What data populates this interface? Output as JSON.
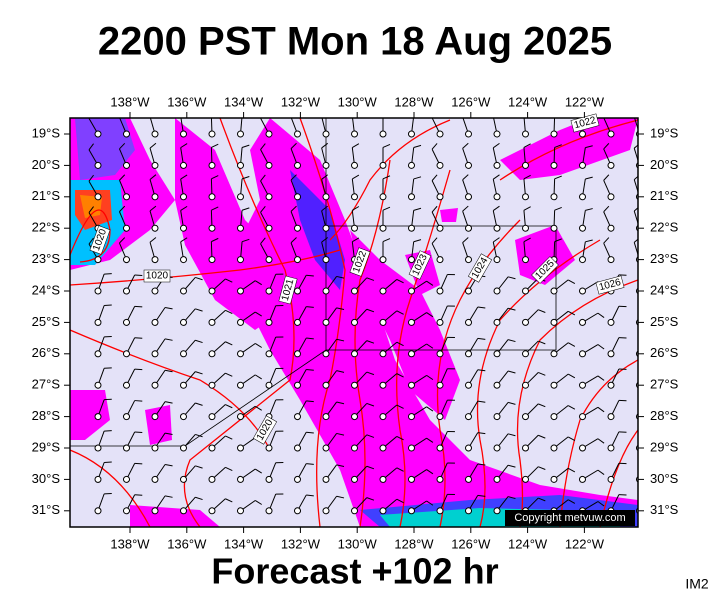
{
  "title": "2200 PST Mon 18 Aug 2025",
  "lon_labels": [
    "138°W",
    "136°W",
    "134°W",
    "132°W",
    "130°W",
    "128°W",
    "126°W",
    "124°W",
    "122°W"
  ],
  "lat_labels": [
    "19°S",
    "20°S",
    "21°S",
    "22°S",
    "23°S",
    "24°S",
    "25°S",
    "26°S",
    "27°S",
    "28°S",
    "29°S",
    "30°S",
    "31°S"
  ],
  "contour_labels": [
    "1020",
    "1020",
    "1021",
    "1022",
    "1023",
    "1024",
    "1025",
    "1026",
    "1022",
    "1020"
  ],
  "copyright": "Copyright metvuw.com",
  "footer": "Forecast +102 hr",
  "image_id": "IM2"
}
